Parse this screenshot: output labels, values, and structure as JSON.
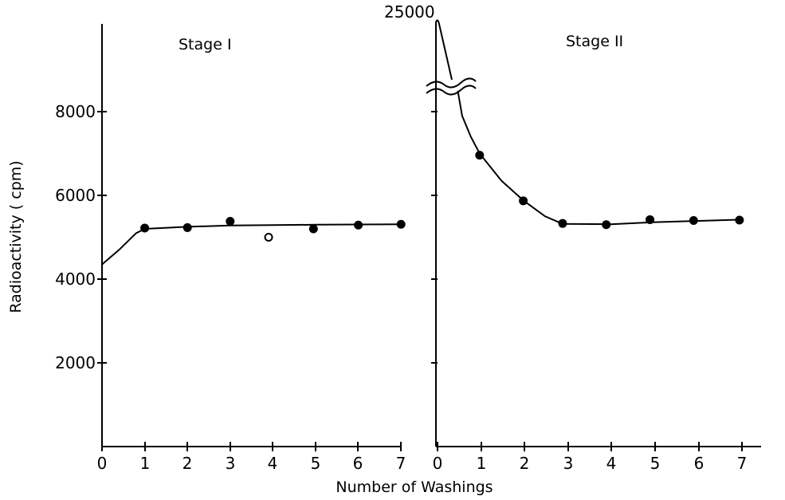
{
  "chart_data": [
    {
      "type": "scatter",
      "panel": "left",
      "title": "Stage I",
      "xlabel": "Number of Washings",
      "ylabel": "Radioactivity ( cpm)",
      "xlim": [
        0,
        7
      ],
      "ylim": [
        0,
        10000
      ],
      "x_ticks": [
        "0",
        "1",
        "2",
        "3",
        "4",
        "5",
        "6",
        "7"
      ],
      "y_ticks": [
        "2000",
        "4000",
        "6000",
        "8000"
      ],
      "y_tick_values": [
        2000,
        4000,
        6000,
        8000
      ],
      "points": [
        {
          "x": 1,
          "y": 5220,
          "marker": "filled"
        },
        {
          "x": 2,
          "y": 5230,
          "marker": "filled"
        },
        {
          "x": 3,
          "y": 5380,
          "marker": "filled"
        },
        {
          "x": 3.9,
          "y": 5000,
          "marker": "open"
        },
        {
          "x": 4.95,
          "y": 5200,
          "marker": "filled"
        },
        {
          "x": 6,
          "y": 5290,
          "marker": "filled"
        },
        {
          "x": 7,
          "y": 5310,
          "marker": "filled"
        }
      ],
      "curve": [
        [
          0,
          4350
        ],
        [
          0.4,
          4700
        ],
        [
          0.8,
          5100
        ],
        [
          1,
          5200
        ],
        [
          2,
          5250
        ],
        [
          3,
          5280
        ],
        [
          4,
          5290
        ],
        [
          5,
          5300
        ],
        [
          6,
          5305
        ],
        [
          7,
          5310
        ]
      ],
      "grid": false,
      "legend": "none"
    },
    {
      "type": "scatter",
      "panel": "right",
      "title": "Stage II",
      "xlabel": "Number of Washings",
      "ylabel": "Radioactivity ( cpm)",
      "xlim": [
        0,
        7
      ],
      "ylim": [
        0,
        10000
      ],
      "axis_break_label": "25000",
      "x_ticks": [
        "0",
        "1",
        "2",
        "3",
        "4",
        "5",
        "6",
        "7"
      ],
      "points": [
        {
          "x": 1,
          "y": 6960,
          "marker": "filled"
        },
        {
          "x": 2,
          "y": 5870,
          "marker": "filled"
        },
        {
          "x": 2.9,
          "y": 5330,
          "marker": "filled"
        },
        {
          "x": 3.9,
          "y": 5300,
          "marker": "filled"
        },
        {
          "x": 4.9,
          "y": 5420,
          "marker": "filled"
        },
        {
          "x": 5.9,
          "y": 5400,
          "marker": "filled"
        },
        {
          "x": 6.95,
          "y": 5410,
          "marker": "filled"
        }
      ],
      "curve": [
        [
          0.5,
          8500
        ],
        [
          0.6,
          7900
        ],
        [
          0.8,
          7400
        ],
        [
          1,
          7000
        ],
        [
          1.5,
          6350
        ],
        [
          2,
          5880
        ],
        [
          2.5,
          5500
        ],
        [
          2.9,
          5320
        ],
        [
          4,
          5310
        ],
        [
          5,
          5360
        ],
        [
          6,
          5390
        ],
        [
          7,
          5420
        ]
      ],
      "spike": [
        [
          0,
          9850
        ],
        [
          0,
          9950
        ],
        [
          0.2,
          9300
        ],
        [
          0.4,
          8700
        ]
      ],
      "grid": false,
      "legend": "none"
    }
  ]
}
